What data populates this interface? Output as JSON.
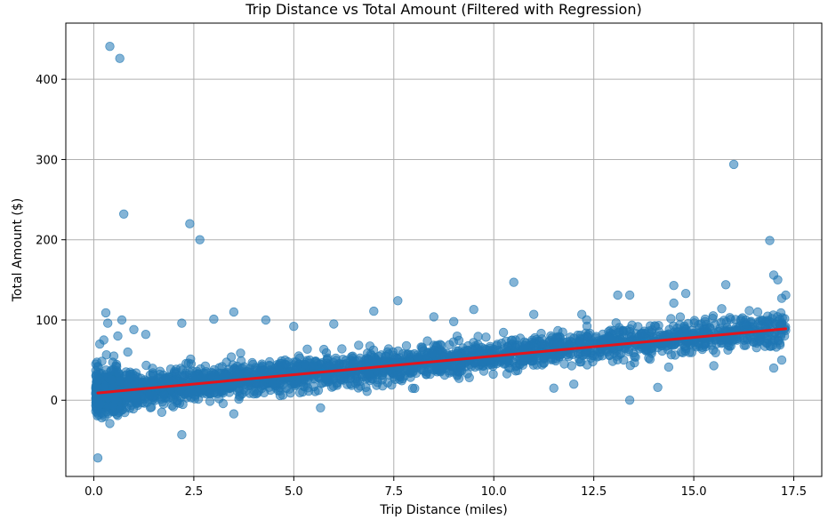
{
  "chart_data": {
    "type": "scatter",
    "title": "Trip Distance vs Total Amount (Filtered with Regression)",
    "xlabel": "Trip Distance (miles)",
    "ylabel": "Total Amount ($)",
    "xlim": [
      -0.7,
      18.2
    ],
    "ylim": [
      -95,
      470
    ],
    "xticks": [
      0.0,
      2.5,
      5.0,
      7.5,
      10.0,
      12.5,
      15.0,
      17.5
    ],
    "xtick_labels": [
      "0.0",
      "2.5",
      "5.0",
      "7.5",
      "10.0",
      "12.5",
      "15.0",
      "17.5"
    ],
    "yticks": [
      0,
      100,
      200,
      300,
      400
    ],
    "ytick_labels": [
      "0",
      "100",
      "200",
      "300",
      "400"
    ],
    "grid": true,
    "point_color": "#1f77b4",
    "line_color": "#e3141c",
    "regression": {
      "x": [
        0.1,
        17.3
      ],
      "y": [
        9,
        89
      ]
    },
    "outliers": [
      [
        0.4,
        441
      ],
      [
        0.65,
        426
      ],
      [
        0.75,
        232
      ],
      [
        2.4,
        220
      ],
      [
        2.65,
        200
      ],
      [
        16.0,
        294
      ],
      [
        16.9,
        199
      ],
      [
        17.0,
        156
      ],
      [
        17.1,
        150
      ],
      [
        17.2,
        127
      ],
      [
        17.3,
        131
      ],
      [
        15.8,
        144
      ],
      [
        14.5,
        143
      ],
      [
        14.5,
        121
      ],
      [
        14.8,
        133
      ],
      [
        13.1,
        131
      ],
      [
        13.4,
        131
      ],
      [
        10.5,
        147
      ],
      [
        9.5,
        113
      ],
      [
        7.6,
        124
      ],
      [
        7.0,
        111
      ],
      [
        3.5,
        110
      ],
      [
        3.0,
        101
      ],
      [
        0.3,
        109
      ],
      [
        0.1,
        -72
      ],
      [
        2.2,
        -43
      ],
      [
        0.4,
        -29
      ],
      [
        3.5,
        -17
      ],
      [
        1.7,
        -15
      ],
      [
        0.2,
        -22
      ],
      [
        0.35,
        96
      ],
      [
        0.7,
        100
      ],
      [
        1.0,
        88
      ],
      [
        1.3,
        82
      ],
      [
        2.2,
        96
      ],
      [
        4.3,
        100
      ],
      [
        5.0,
        92
      ],
      [
        6.0,
        95
      ],
      [
        8.5,
        104
      ],
      [
        9.0,
        98
      ],
      [
        11.0,
        107
      ],
      [
        12.2,
        107
      ],
      [
        11.5,
        15
      ],
      [
        12.0,
        20
      ],
      [
        13.4,
        0
      ],
      [
        14.1,
        16
      ],
      [
        15.5,
        43
      ],
      [
        17.0,
        40
      ],
      [
        17.2,
        50
      ],
      [
        16.6,
        110
      ],
      [
        15.9,
        103
      ],
      [
        16.3,
        100
      ],
      [
        0.05,
        45
      ],
      [
        0.15,
        70
      ],
      [
        0.6,
        80
      ],
      [
        0.85,
        60
      ],
      [
        1.1,
        -3
      ],
      [
        0.9,
        -10
      ],
      [
        0.5,
        55
      ],
      [
        0.25,
        75
      ]
    ],
    "cloud": {
      "x_min": 0.05,
      "x_max": 17.3,
      "points": 2600,
      "spread": 10,
      "seed": 7
    }
  }
}
